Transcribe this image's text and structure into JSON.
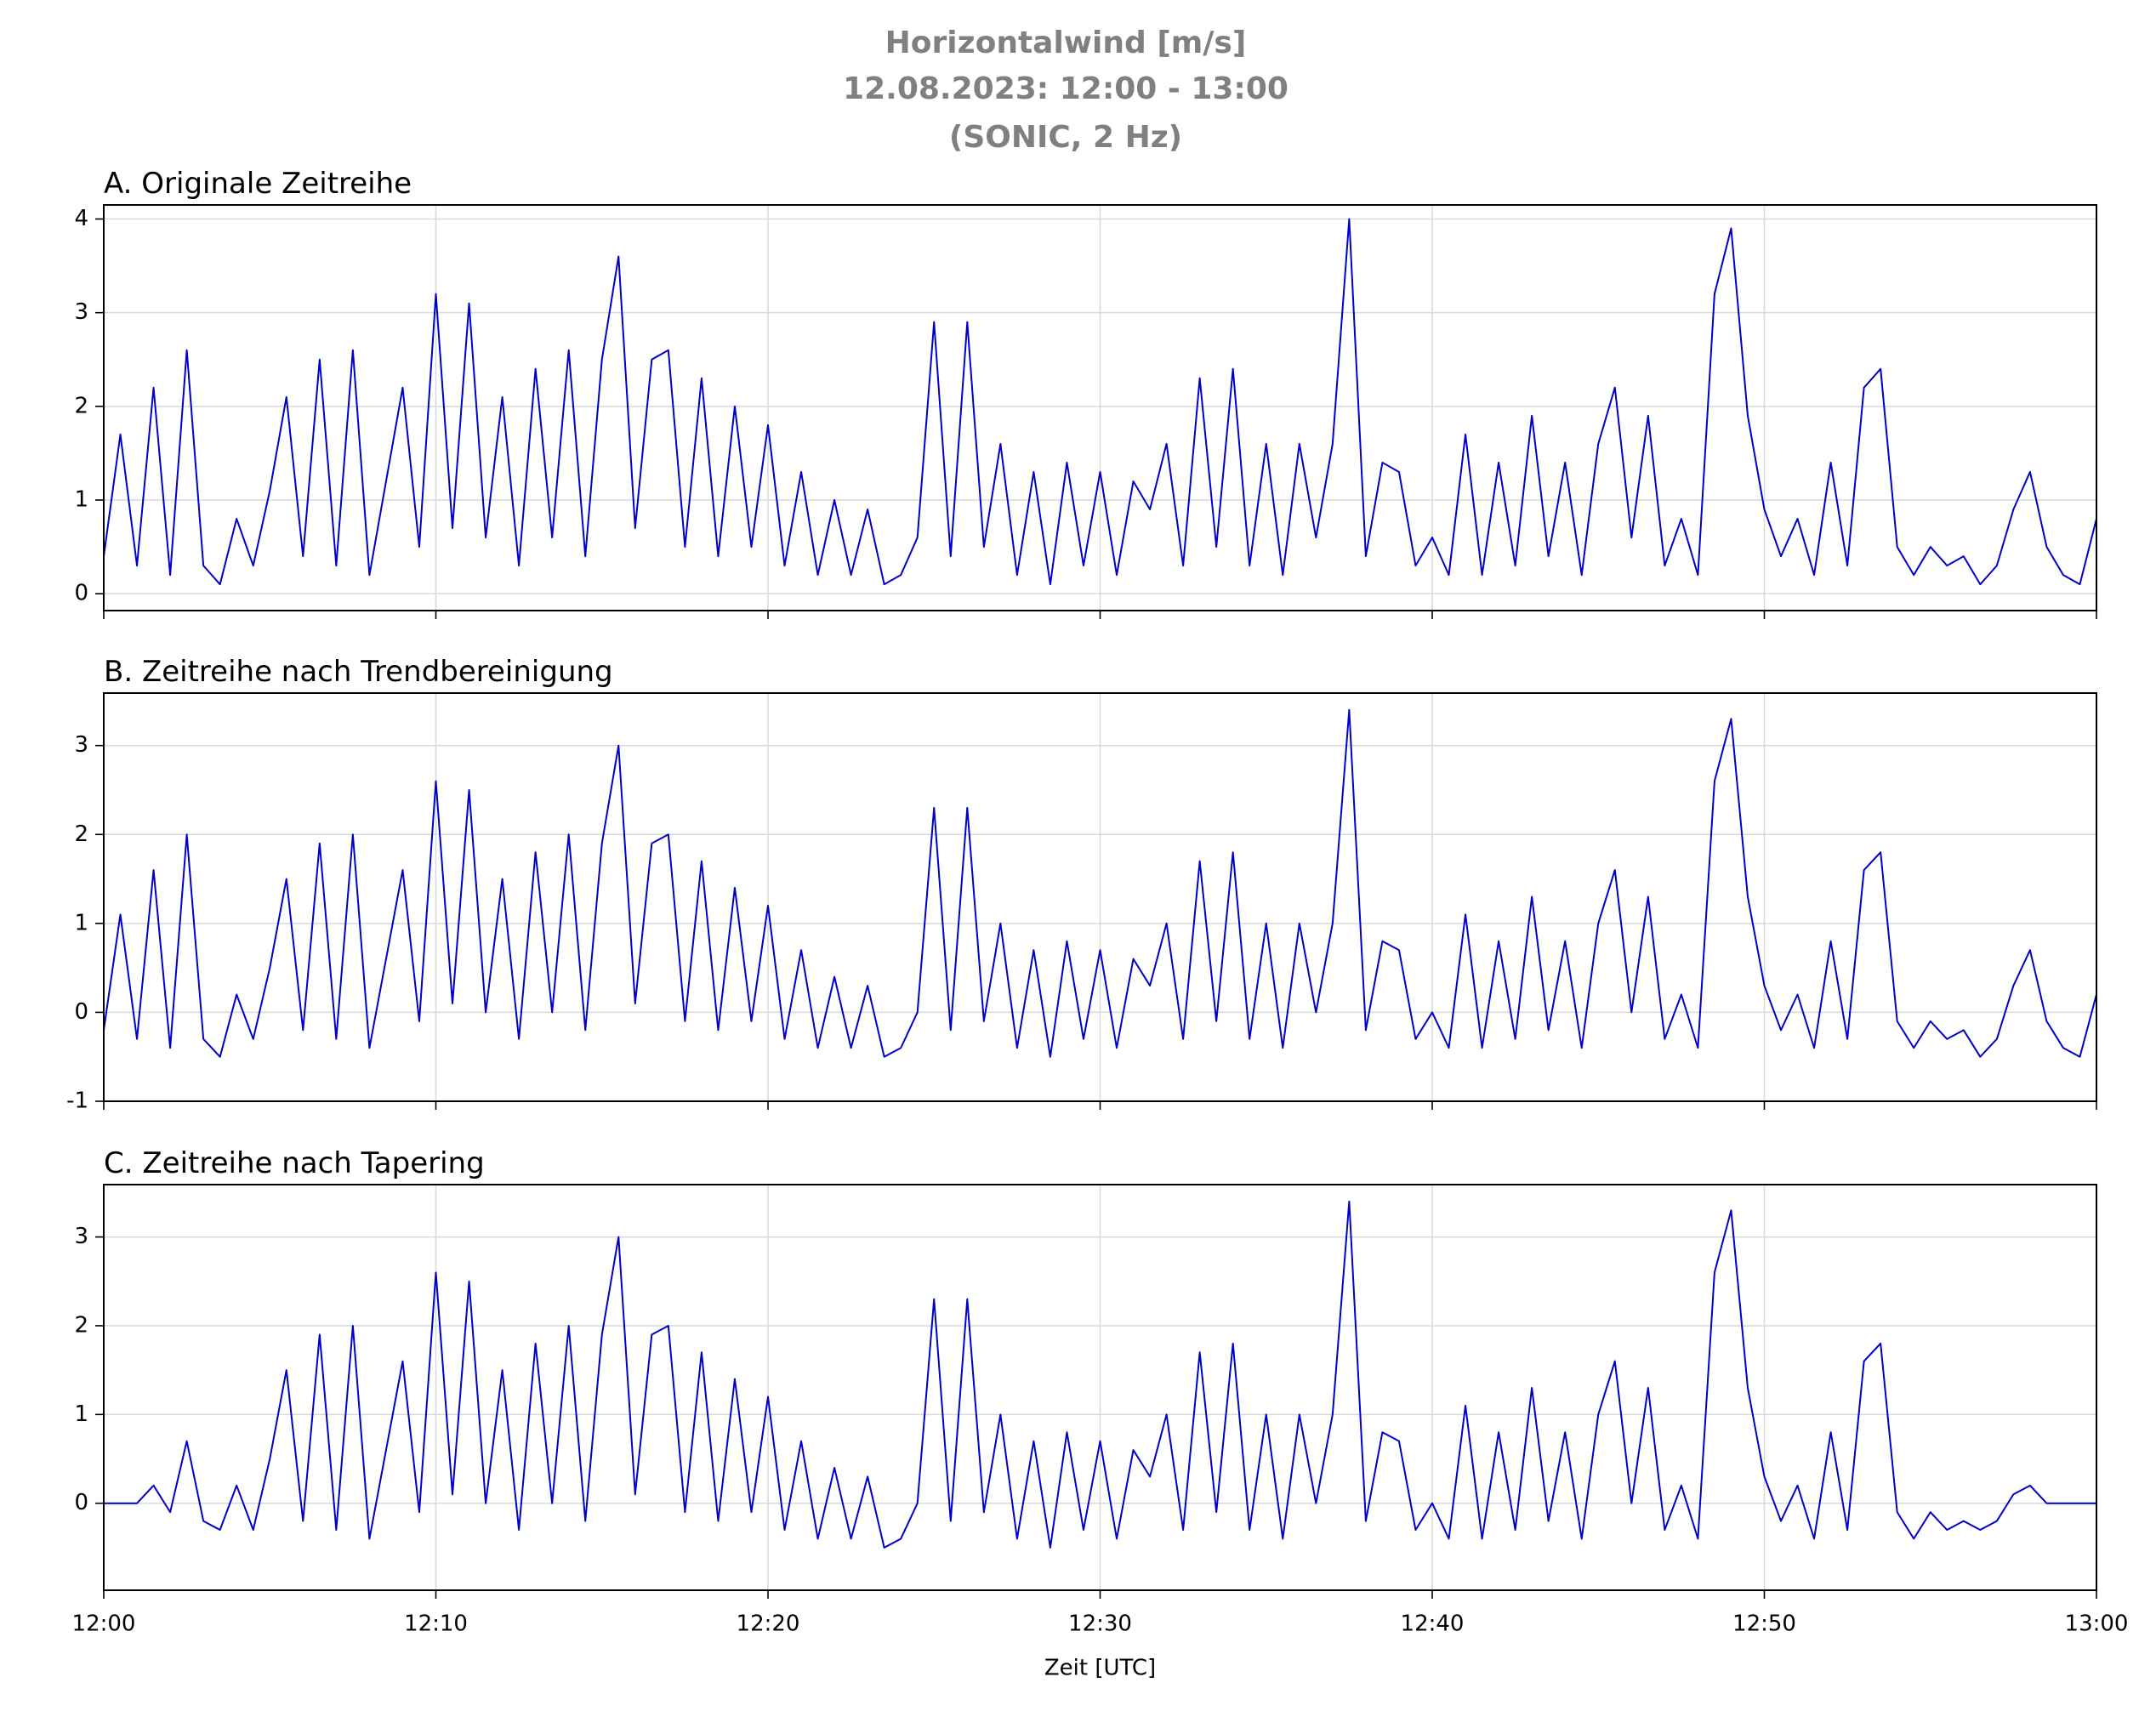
{
  "title": [
    "Horizontalwind [m/s]",
    "12.08.2023:  12:00 -  13:00",
    "(SONIC, 2 Hz)"
  ],
  "chart_data": [
    {
      "type": "line",
      "subtitle": "A. Originale Zeitreihe",
      "color": "#0000cc",
      "grid": true,
      "x": [
        0,
        0.5,
        1,
        1.5,
        2,
        2.5,
        3,
        3.5,
        4,
        4.5,
        5,
        5.5,
        6,
        6.5,
        7,
        7.5,
        8,
        8.5,
        9,
        9.5,
        10,
        10.5,
        11,
        11.5,
        12,
        12.5,
        13,
        13.5,
        14,
        14.5,
        15,
        15.5,
        16,
        16.5,
        17,
        17.5,
        18,
        18.5,
        19,
        19.5,
        20,
        20.5,
        21,
        21.5,
        22,
        22.5,
        23,
        23.5,
        24,
        24.5,
        25,
        25.5,
        26,
        26.5,
        27,
        27.5,
        28,
        28.5,
        29,
        29.5,
        30,
        30.5,
        31,
        31.5,
        32,
        32.5,
        33,
        33.5,
        34,
        34.5,
        35,
        35.5,
        36,
        36.5,
        37,
        37.5,
        38,
        38.5,
        39,
        39.5,
        40,
        40.5,
        41,
        41.5,
        42,
        42.5,
        43,
        43.5,
        44,
        44.5,
        45,
        45.5,
        46,
        46.5,
        47,
        47.5,
        48,
        48.5,
        49,
        49.5,
        50,
        50.5,
        51,
        51.5,
        52,
        52.5,
        53,
        53.5,
        54,
        54.5,
        55,
        55.5,
        56,
        56.5,
        57,
        57.5,
        58,
        58.5,
        59,
        59.5,
        60
      ],
      "values": [
        0.4,
        1.7,
        0.3,
        2.2,
        0.2,
        2.6,
        0.3,
        0.1,
        0.8,
        0.3,
        1.1,
        2.1,
        0.4,
        2.5,
        0.3,
        2.6,
        0.2,
        1.2,
        2.2,
        0.5,
        3.2,
        0.7,
        3.1,
        0.6,
        2.1,
        0.3,
        2.4,
        0.6,
        2.6,
        0.4,
        2.5,
        3.6,
        0.7,
        2.5,
        2.6,
        0.5,
        2.3,
        0.4,
        2.0,
        0.5,
        1.8,
        0.3,
        1.3,
        0.2,
        1.0,
        0.2,
        0.9,
        0.1,
        0.2,
        0.6,
        2.9,
        0.4,
        2.9,
        0.5,
        1.6,
        0.2,
        1.3,
        0.1,
        1.4,
        0.3,
        1.3,
        0.2,
        1.2,
        0.9,
        1.6,
        0.3,
        2.3,
        0.5,
        2.4,
        0.3,
        1.6,
        0.2,
        1.6,
        0.6,
        1.6,
        4.0,
        0.4,
        1.4,
        1.3,
        0.3,
        0.6,
        0.2,
        1.7,
        0.2,
        1.4,
        0.3,
        1.9,
        0.4,
        1.4,
        0.2,
        1.6,
        2.2,
        0.6,
        1.9,
        0.3,
        0.8,
        0.2,
        3.2,
        3.9,
        1.9,
        0.9,
        0.4,
        0.8,
        0.2,
        1.4,
        0.3,
        2.2,
        2.4,
        0.5,
        0.2,
        0.5,
        0.3,
        0.4,
        0.1,
        0.3,
        0.9,
        1.3,
        0.5,
        0.2,
        0.1,
        0.8
      ],
      "xlim": [
        0,
        60
      ],
      "xticks": [
        0,
        10,
        20,
        30,
        40,
        50,
        60
      ],
      "ylim": [
        -0.18,
        4.15
      ],
      "yticks": [
        0,
        1,
        2,
        3,
        4
      ]
    },
    {
      "type": "line",
      "subtitle": "B. Zeitreihe nach Trendbereinigung",
      "color": "#0000cc",
      "grid": true,
      "x": [
        0,
        0.5,
        1,
        1.5,
        2,
        2.5,
        3,
        3.5,
        4,
        4.5,
        5,
        5.5,
        6,
        6.5,
        7,
        7.5,
        8,
        8.5,
        9,
        9.5,
        10,
        10.5,
        11,
        11.5,
        12,
        12.5,
        13,
        13.5,
        14,
        14.5,
        15,
        15.5,
        16,
        16.5,
        17,
        17.5,
        18,
        18.5,
        19,
        19.5,
        20,
        20.5,
        21,
        21.5,
        22,
        22.5,
        23,
        23.5,
        24,
        24.5,
        25,
        25.5,
        26,
        26.5,
        27,
        27.5,
        28,
        28.5,
        29,
        29.5,
        30,
        30.5,
        31,
        31.5,
        32,
        32.5,
        33,
        33.5,
        34,
        34.5,
        35,
        35.5,
        36,
        36.5,
        37,
        37.5,
        38,
        38.5,
        39,
        39.5,
        40,
        40.5,
        41,
        41.5,
        42,
        42.5,
        43,
        43.5,
        44,
        44.5,
        45,
        45.5,
        46,
        46.5,
        47,
        47.5,
        48,
        48.5,
        49,
        49.5,
        50,
        50.5,
        51,
        51.5,
        52,
        52.5,
        53,
        53.5,
        54,
        54.5,
        55,
        55.5,
        56,
        56.5,
        57,
        57.5,
        58,
        58.5,
        59,
        59.5,
        60
      ],
      "values": [
        -0.2,
        1.1,
        -0.3,
        1.6,
        -0.4,
        2.0,
        -0.3,
        -0.5,
        0.2,
        -0.3,
        0.5,
        1.5,
        -0.2,
        1.9,
        -0.3,
        2.0,
        -0.4,
        0.6,
        1.6,
        -0.1,
        2.6,
        0.1,
        2.5,
        0.0,
        1.5,
        -0.3,
        1.8,
        0.0,
        2.0,
        -0.2,
        1.9,
        3.0,
        0.1,
        1.9,
        2.0,
        -0.1,
        1.7,
        -0.2,
        1.4,
        -0.1,
        1.2,
        -0.3,
        0.7,
        -0.4,
        0.4,
        -0.4,
        0.3,
        -0.5,
        -0.4,
        0.0,
        2.3,
        -0.2,
        2.3,
        -0.1,
        1.0,
        -0.4,
        0.7,
        -0.5,
        0.8,
        -0.3,
        0.7,
        -0.4,
        0.6,
        0.3,
        1.0,
        -0.3,
        1.7,
        -0.1,
        1.8,
        -0.3,
        1.0,
        -0.4,
        1.0,
        0.0,
        1.0,
        3.4,
        -0.2,
        0.8,
        0.7,
        -0.3,
        0.0,
        -0.4,
        1.1,
        -0.4,
        0.8,
        -0.3,
        1.3,
        -0.2,
        0.8,
        -0.4,
        1.0,
        1.6,
        0.0,
        1.3,
        -0.3,
        0.2,
        -0.4,
        2.6,
        3.3,
        1.3,
        0.3,
        -0.2,
        0.2,
        -0.4,
        0.8,
        -0.3,
        1.6,
        1.8,
        -0.1,
        -0.4,
        -0.1,
        -0.3,
        -0.2,
        -0.5,
        -0.3,
        0.3,
        0.7,
        -0.1,
        -0.4,
        -0.5,
        0.2
      ],
      "xlim": [
        0,
        60
      ],
      "xticks": [
        0,
        10,
        20,
        30,
        40,
        50,
        60
      ],
      "ylim": [
        -1,
        3.59
      ],
      "yticks": [
        -1,
        0,
        1,
        2,
        3
      ]
    },
    {
      "type": "line",
      "subtitle": "C. Zeitreihe nach Tapering",
      "color": "#0000cc",
      "grid": true,
      "xlabel": "Zeit [UTC]",
      "x": [
        0,
        0.5,
        1,
        1.5,
        2,
        2.5,
        3,
        3.5,
        4,
        4.5,
        5,
        5.5,
        6,
        6.5,
        7,
        7.5,
        8,
        8.5,
        9,
        9.5,
        10,
        10.5,
        11,
        11.5,
        12,
        12.5,
        13,
        13.5,
        14,
        14.5,
        15,
        15.5,
        16,
        16.5,
        17,
        17.5,
        18,
        18.5,
        19,
        19.5,
        20,
        20.5,
        21,
        21.5,
        22,
        22.5,
        23,
        23.5,
        24,
        24.5,
        25,
        25.5,
        26,
        26.5,
        27,
        27.5,
        28,
        28.5,
        29,
        29.5,
        30,
        30.5,
        31,
        31.5,
        32,
        32.5,
        33,
        33.5,
        34,
        34.5,
        35,
        35.5,
        36,
        36.5,
        37,
        37.5,
        38,
        38.5,
        39,
        39.5,
        40,
        40.5,
        41,
        41.5,
        42,
        42.5,
        43,
        43.5,
        44,
        44.5,
        45,
        45.5,
        46,
        46.5,
        47,
        47.5,
        48,
        48.5,
        49,
        49.5,
        50,
        50.5,
        51,
        51.5,
        52,
        52.5,
        53,
        53.5,
        54,
        54.5,
        55,
        55.5,
        56,
        56.5,
        57,
        57.5,
        58,
        58.5,
        59,
        59.5,
        60
      ],
      "values": [
        0.0,
        0.0,
        0.0,
        0.2,
        -0.1,
        0.7,
        -0.2,
        -0.3,
        0.2,
        -0.3,
        0.5,
        1.5,
        -0.2,
        1.9,
        -0.3,
        2.0,
        -0.4,
        0.6,
        1.6,
        -0.1,
        2.6,
        0.1,
        2.5,
        0.0,
        1.5,
        -0.3,
        1.8,
        0.0,
        2.0,
        -0.2,
        1.9,
        3.0,
        0.1,
        1.9,
        2.0,
        -0.1,
        1.7,
        -0.2,
        1.4,
        -0.1,
        1.2,
        -0.3,
        0.7,
        -0.4,
        0.4,
        -0.4,
        0.3,
        -0.5,
        -0.4,
        0.0,
        2.3,
        -0.2,
        2.3,
        -0.1,
        1.0,
        -0.4,
        0.7,
        -0.5,
        0.8,
        -0.3,
        0.7,
        -0.4,
        0.6,
        0.3,
        1.0,
        -0.3,
        1.7,
        -0.1,
        1.8,
        -0.3,
        1.0,
        -0.4,
        1.0,
        0.0,
        1.0,
        3.4,
        -0.2,
        0.8,
        0.7,
        -0.3,
        0.0,
        -0.4,
        1.1,
        -0.4,
        0.8,
        -0.3,
        1.3,
        -0.2,
        0.8,
        -0.4,
        1.0,
        1.6,
        0.0,
        1.3,
        -0.3,
        0.2,
        -0.4,
        2.6,
        3.3,
        1.3,
        0.3,
        -0.2,
        0.2,
        -0.4,
        0.8,
        -0.3,
        1.6,
        1.8,
        -0.1,
        -0.4,
        -0.1,
        -0.3,
        -0.2,
        -0.3,
        -0.2,
        0.1,
        0.2,
        0.0,
        0.0,
        0.0,
        0.0
      ],
      "xlim": [
        0,
        60
      ],
      "xticks": [
        {
          "value": 0,
          "label": "12:00"
        },
        {
          "value": 10,
          "label": "12:10"
        },
        {
          "value": 20,
          "label": "12:20"
        },
        {
          "value": 30,
          "label": "12:30"
        },
        {
          "value": 40,
          "label": "12:40"
        },
        {
          "value": 50,
          "label": "12:50"
        },
        {
          "value": 60,
          "label": "13:00"
        }
      ],
      "ylim": [
        -0.98,
        3.59
      ],
      "yticks": [
        0,
        1,
        2,
        3
      ]
    }
  ]
}
